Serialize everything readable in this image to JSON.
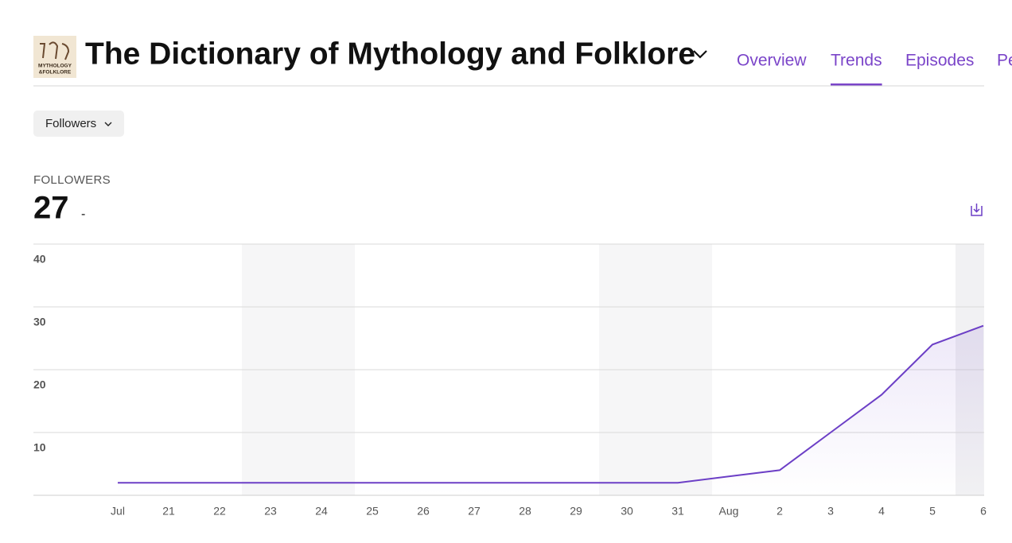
{
  "header": {
    "logo_lines": [
      "MYTHOLOGY",
      "&FOLKLORE"
    ],
    "title": "The Dictionary of Mythology and Folklore"
  },
  "tabs": [
    {
      "label": "Overview",
      "active": false
    },
    {
      "label": "Trends",
      "active": true
    },
    {
      "label": "Episodes",
      "active": false
    },
    {
      "label": "Pe",
      "active": false
    }
  ],
  "filter": "Followers",
  "metric": {
    "label": "FOLLOWERS",
    "value": 27,
    "change": "-"
  },
  "chart_data": {
    "type": "line",
    "categories": [
      "Jul",
      "21",
      "22",
      "23",
      "24",
      "25",
      "26",
      "27",
      "28",
      "29",
      "30",
      "31",
      "Aug",
      "2",
      "3",
      "4",
      "5",
      "6"
    ],
    "series": [
      {
        "name": "Followers",
        "color": "#6c3fc6",
        "values": [
          2,
          2,
          2,
          2,
          2,
          2,
          2,
          2,
          2,
          2,
          2,
          2,
          3,
          4,
          10,
          16,
          24,
          27
        ]
      }
    ],
    "ylim": [
      0,
      40
    ],
    "yticks": [
      10,
      20,
      30,
      40
    ],
    "grid": true
  }
}
